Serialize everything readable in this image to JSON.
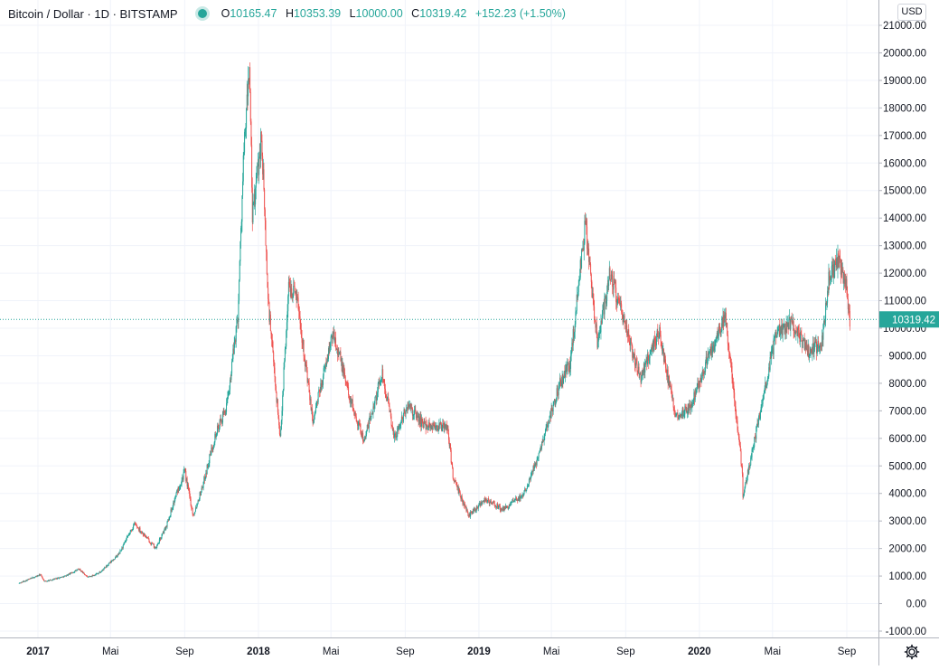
{
  "header": {
    "symbol": "Bitcoin / Dollar · 1D · BITSTAMP",
    "open_label": "O",
    "open": "10165.47",
    "high_label": "H",
    "high": "10353.39",
    "low_label": "L",
    "low": "10000.00",
    "close_label": "C",
    "close": "10319.42",
    "change": "+152.23 (+1.50%)"
  },
  "currency": "USD",
  "colors": {
    "up": "#26a69a",
    "down": "#ef5350",
    "grid": "#f0f3fa",
    "axis": "#131722",
    "last_price": "#26a69a"
  },
  "icons": {
    "settings": "gear-icon",
    "live": "status-dot-icon"
  },
  "chart_data": {
    "type": "candlestick",
    "ylim": [
      -1000,
      21000
    ],
    "y_ticks": [
      "21000.00",
      "20000.00",
      "19000.00",
      "18000.00",
      "17000.00",
      "16000.00",
      "15000.00",
      "14000.00",
      "13000.00",
      "12000.00",
      "11000.00",
      "10000.00",
      "9000.00",
      "8000.00",
      "7000.00",
      "6000.00",
      "5000.00",
      "4000.00",
      "3000.00",
      "2000.00",
      "1000.00",
      "0.00",
      "-1000.00"
    ],
    "x_ticks": [
      "2017",
      "Mai",
      "Sep",
      "2018",
      "Mai",
      "Sep",
      "2019",
      "Mai",
      "Sep",
      "2020",
      "Mai",
      "Sep"
    ],
    "last_price": 10319.42,
    "last_price_label": "10319.42",
    "grid": true,
    "series": [
      {
        "points": [
          [
            "2016-12-01",
            740
          ],
          [
            "2017-01-05",
            1050
          ],
          [
            "2017-01-12",
            800
          ],
          [
            "2017-02-15",
            1000
          ],
          [
            "2017-03-10",
            1250
          ],
          [
            "2017-03-25",
            950
          ],
          [
            "2017-04-15",
            1150
          ],
          [
            "2017-05-15",
            1800
          ],
          [
            "2017-06-10",
            2900
          ],
          [
            "2017-07-15",
            2000
          ],
          [
            "2017-08-01",
            2800
          ],
          [
            "2017-08-20",
            4100
          ],
          [
            "2017-09-01",
            4800
          ],
          [
            "2017-09-15",
            3200
          ],
          [
            "2017-10-01",
            4300
          ],
          [
            "2017-10-20",
            6000
          ],
          [
            "2017-11-10",
            7200
          ],
          [
            "2017-11-28",
            10500
          ],
          [
            "2017-12-07",
            16000
          ],
          [
            "2017-12-17",
            19600
          ],
          [
            "2017-12-22",
            14000
          ],
          [
            "2018-01-06",
            17000
          ],
          [
            "2018-01-17",
            11000
          ],
          [
            "2018-02-06",
            6000
          ],
          [
            "2018-02-20",
            11500
          ],
          [
            "2018-03-05",
            11300
          ],
          [
            "2018-04-01",
            6600
          ],
          [
            "2018-05-05",
            9900
          ],
          [
            "2018-06-01",
            7500
          ],
          [
            "2018-06-25",
            5900
          ],
          [
            "2018-07-25",
            8400
          ],
          [
            "2018-08-14",
            6000
          ],
          [
            "2018-09-05",
            7200
          ],
          [
            "2018-10-01",
            6500
          ],
          [
            "2018-11-10",
            6400
          ],
          [
            "2018-11-20",
            4500
          ],
          [
            "2018-12-15",
            3200
          ],
          [
            "2019-01-10",
            3800
          ],
          [
            "2019-02-10",
            3400
          ],
          [
            "2019-03-15",
            3950
          ],
          [
            "2019-04-05",
            5100
          ],
          [
            "2019-05-15",
            8000
          ],
          [
            "2019-06-01",
            8700
          ],
          [
            "2019-06-26",
            13800
          ],
          [
            "2019-07-16",
            9500
          ],
          [
            "2019-08-06",
            12000
          ],
          [
            "2019-09-01",
            10000
          ],
          [
            "2019-09-25",
            8200
          ],
          [
            "2019-10-26",
            9900
          ],
          [
            "2019-11-22",
            6800
          ],
          [
            "2019-12-18",
            7200
          ],
          [
            "2020-01-15",
            8900
          ],
          [
            "2020-02-13",
            10400
          ],
          [
            "2020-03-12",
            4800
          ],
          [
            "2020-03-13",
            3850
          ],
          [
            "2020-04-10",
            6900
          ],
          [
            "2020-05-08",
            9900
          ],
          [
            "2020-06-01",
            10200
          ],
          [
            "2020-07-01",
            9100
          ],
          [
            "2020-07-22",
            9500
          ],
          [
            "2020-08-02",
            11800
          ],
          [
            "2020-08-17",
            12400
          ],
          [
            "2020-08-30",
            11700
          ],
          [
            "2020-09-06",
            10319
          ]
        ]
      }
    ]
  }
}
